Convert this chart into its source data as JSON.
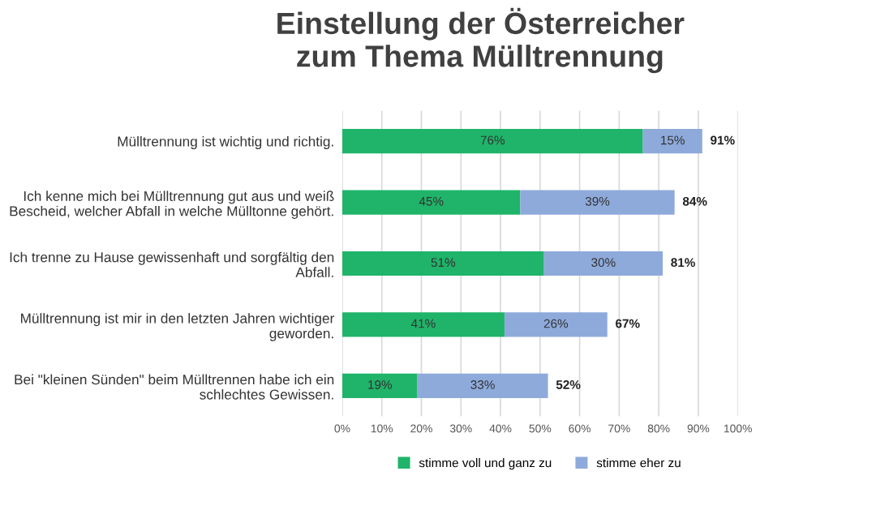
{
  "chart_data": {
    "type": "bar",
    "orientation": "horizontal",
    "stacked": true,
    "title": "Einstellung der Österreicher\nzum Thema Mülltrennung",
    "categories": [
      "Mülltrennung ist wichtig und richtig.",
      "Ich kenne mich bei Mülltrennung gut aus und weiß\nBescheid, welcher Abfall in welche Mülltonne gehört.",
      "Ich trenne zu Hause gewissenhaft und sorgfältig den\nAbfall.",
      "Mülltrennung ist mir in den letzten Jahren wichtiger\ngeworden.",
      "Bei \"kleinen Sünden\" beim Mülltrennen habe ich ein\nschlechtes Gewissen."
    ],
    "series": [
      {
        "name": "stimme voll und ganz zu",
        "color": "#1fb469",
        "values": [
          76,
          45,
          51,
          41,
          19
        ],
        "value_labels": [
          "76%",
          "45%",
          "51%",
          "41%",
          "19%"
        ]
      },
      {
        "name": "stimme eher zu",
        "color": "#8eaadb",
        "values": [
          15,
          39,
          30,
          26,
          33
        ],
        "value_labels": [
          "15%",
          "39%",
          "30%",
          "26%",
          "33%"
        ]
      }
    ],
    "totals": [
      "91%",
      "84%",
      "81%",
      "67%",
      "52%"
    ],
    "xlim": [
      0,
      100
    ],
    "xticks": [
      {
        "value": 0,
        "label": "0%"
      },
      {
        "value": 10,
        "label": "10%"
      },
      {
        "value": 20,
        "label": "20%"
      },
      {
        "value": 30,
        "label": "30%"
      },
      {
        "value": 40,
        "label": "40%"
      },
      {
        "value": 50,
        "label": "50%"
      },
      {
        "value": 60,
        "label": "60%"
      },
      {
        "value": 70,
        "label": "70%"
      },
      {
        "value": 80,
        "label": "80%"
      },
      {
        "value": 90,
        "label": "90%"
      },
      {
        "value": 100,
        "label": "100%"
      }
    ],
    "grid": "x",
    "legend": "bottom"
  }
}
